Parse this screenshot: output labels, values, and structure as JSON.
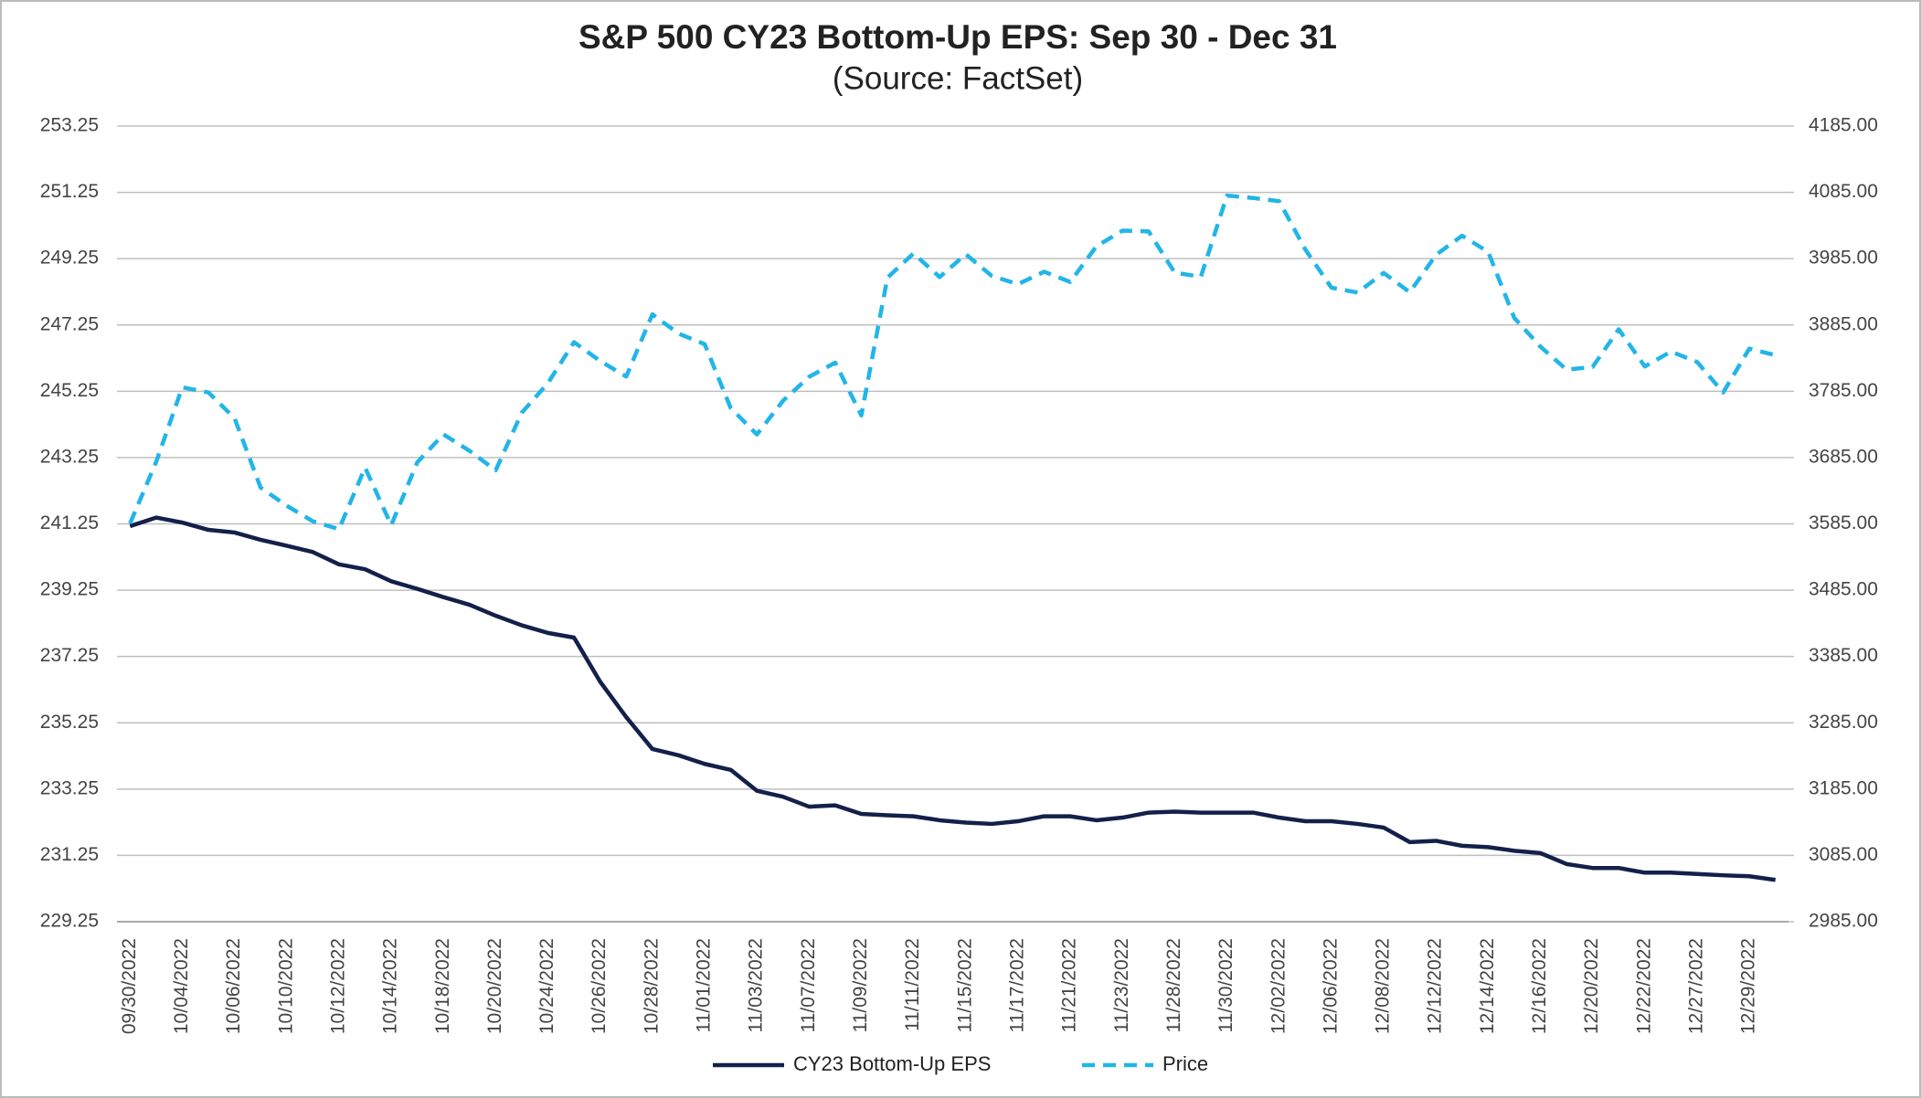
{
  "chart_data": {
    "type": "line",
    "title": "S&P 500 CY23 Bottom-Up EPS: Sep 30 - Dec 31",
    "subtitle": "(Source: FactSet)",
    "categories": [
      "09/30/2022",
      null,
      "10/04/2022",
      null,
      "10/06/2022",
      null,
      "10/10/2022",
      null,
      "10/12/2022",
      null,
      "10/14/2022",
      null,
      "10/18/2022",
      null,
      "10/20/2022",
      null,
      "10/24/2022",
      null,
      "10/26/2022",
      null,
      "10/28/2022",
      null,
      "11/01/2022",
      null,
      "11/03/2022",
      null,
      "11/07/2022",
      null,
      "11/09/2022",
      null,
      "11/11/2022",
      null,
      "11/15/2022",
      null,
      "11/17/2022",
      null,
      "11/21/2022",
      null,
      "11/23/2022",
      null,
      "11/28/2022",
      null,
      "11/30/2022",
      null,
      "12/02/2022",
      null,
      "12/06/2022",
      null,
      "12/08/2022",
      null,
      "12/12/2022",
      null,
      "12/14/2022",
      null,
      "12/16/2022",
      null,
      "12/20/2022",
      null,
      "12/22/2022",
      null,
      "12/27/2022",
      null,
      "12/29/2022",
      null
    ],
    "series": [
      {
        "name": "CY23 Bottom-Up EPS",
        "color": "#13204a",
        "dashed": false,
        "axis": "y",
        "values": [
          241.18,
          241.44,
          241.29,
          241.07,
          240.99,
          240.77,
          240.59,
          240.4,
          240.03,
          239.88,
          239.52,
          239.29,
          239.04,
          238.81,
          238.48,
          238.19,
          237.96,
          237.82,
          236.49,
          235.42,
          234.46,
          234.27,
          234.01,
          233.83,
          233.2,
          233.02,
          232.72,
          232.76,
          232.5,
          232.46,
          232.43,
          232.31,
          232.24,
          232.2,
          232.28,
          232.43,
          232.43,
          232.31,
          232.39,
          232.54,
          232.57,
          232.54,
          232.54,
          232.54,
          232.39,
          232.28,
          232.28,
          232.2,
          232.09,
          231.65,
          231.69,
          231.54,
          231.5,
          231.39,
          231.32,
          230.99,
          230.87,
          230.87,
          230.73,
          230.73,
          230.69,
          230.65,
          230.62,
          230.51
        ]
      },
      {
        "name": "Price",
        "color": "#22b5e8",
        "dashed": true,
        "axis": "y2",
        "values": [
          3585.62,
          3678.43,
          3790.93,
          3783.28,
          3744.52,
          3639.66,
          3612.39,
          3588.84,
          3577.03,
          3669.91,
          3583.07,
          3677.95,
          3719.98,
          3695.16,
          3665.78,
          3752.75,
          3797.34,
          3859.11,
          3830.6,
          3807.3,
          3901.06,
          3871.98,
          3856.1,
          3759.69,
          3719.89,
          3770.55,
          3806.8,
          3828.11,
          3748.57,
          3956.37,
          3992.93,
          3957.25,
          3991.73,
          3958.79,
          3946.56,
          3965.34,
          3949.94,
          4003.58,
          4027.26,
          4026.12,
          3963.94,
          3957.63,
          4080.11,
          4076.57,
          4071.7,
          3998.84,
          3941.26,
          3933.92,
          3963.51,
          3934.38,
          3990.56,
          4019.65,
          3995.32,
          3895.75,
          3852.36,
          3817.66,
          3821.62,
          3878.44,
          3822.39,
          3844.82,
          3829.25,
          3783.22,
          3849.28,
          3839.5
        ]
      }
    ],
    "ylim": [
      229.25,
      253.25
    ],
    "yticks": [
      229.25,
      231.25,
      233.25,
      235.25,
      237.25,
      239.25,
      241.25,
      243.25,
      245.25,
      247.25,
      249.25,
      251.25,
      253.25
    ],
    "y2lim": [
      2985,
      4185
    ],
    "y2ticks": [
      {
        "value": 2985,
        "label": "2985.00"
      },
      {
        "value": 3085,
        "label": "3085.00"
      },
      {
        "value": 3185,
        "label": "3185.00"
      },
      {
        "value": 3285,
        "label": "3285.00"
      },
      {
        "value": 3385,
        "label": "3385.00"
      },
      {
        "value": 3485,
        "label": "3485.00"
      },
      {
        "value": 3585,
        "label": "3585.00"
      },
      {
        "value": 3685,
        "label": "3685.00"
      },
      {
        "value": 3785,
        "label": "3785.00"
      },
      {
        "value": 3885,
        "label": "3885.00"
      },
      {
        "value": 3985,
        "label": "3985.00"
      },
      {
        "value": 4085,
        "label": "4085.00"
      },
      {
        "value": 4185,
        "label": "4185.00"
      }
    ],
    "grid": true,
    "legend": "bottom"
  }
}
